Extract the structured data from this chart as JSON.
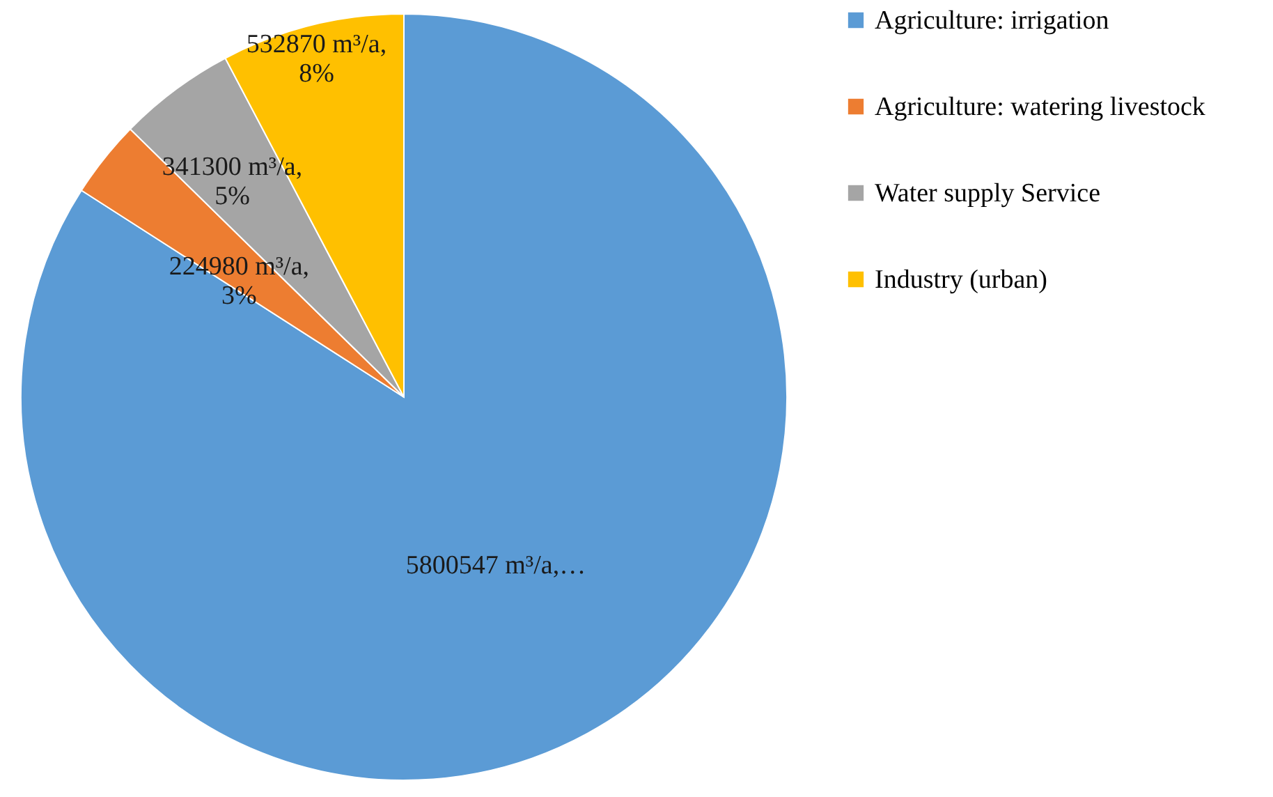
{
  "chart_data": {
    "type": "pie",
    "categories": [
      "Agriculture: irrigation",
      "Agriculture: watering livestock",
      "Water supply Service",
      "Industry (urban)"
    ],
    "values": [
      5800547,
      224980,
      341300,
      532870
    ],
    "colors": [
      "#5b9bd5",
      "#ed7d31",
      "#a5a5a5",
      "#ffc000"
    ],
    "value_labels": [
      "5800547 m³/a,…",
      "224980 m³/a,\n3%",
      "341300 m³/a,\n5%",
      "532870 m³/a,\n8%"
    ],
    "legend": "right"
  }
}
